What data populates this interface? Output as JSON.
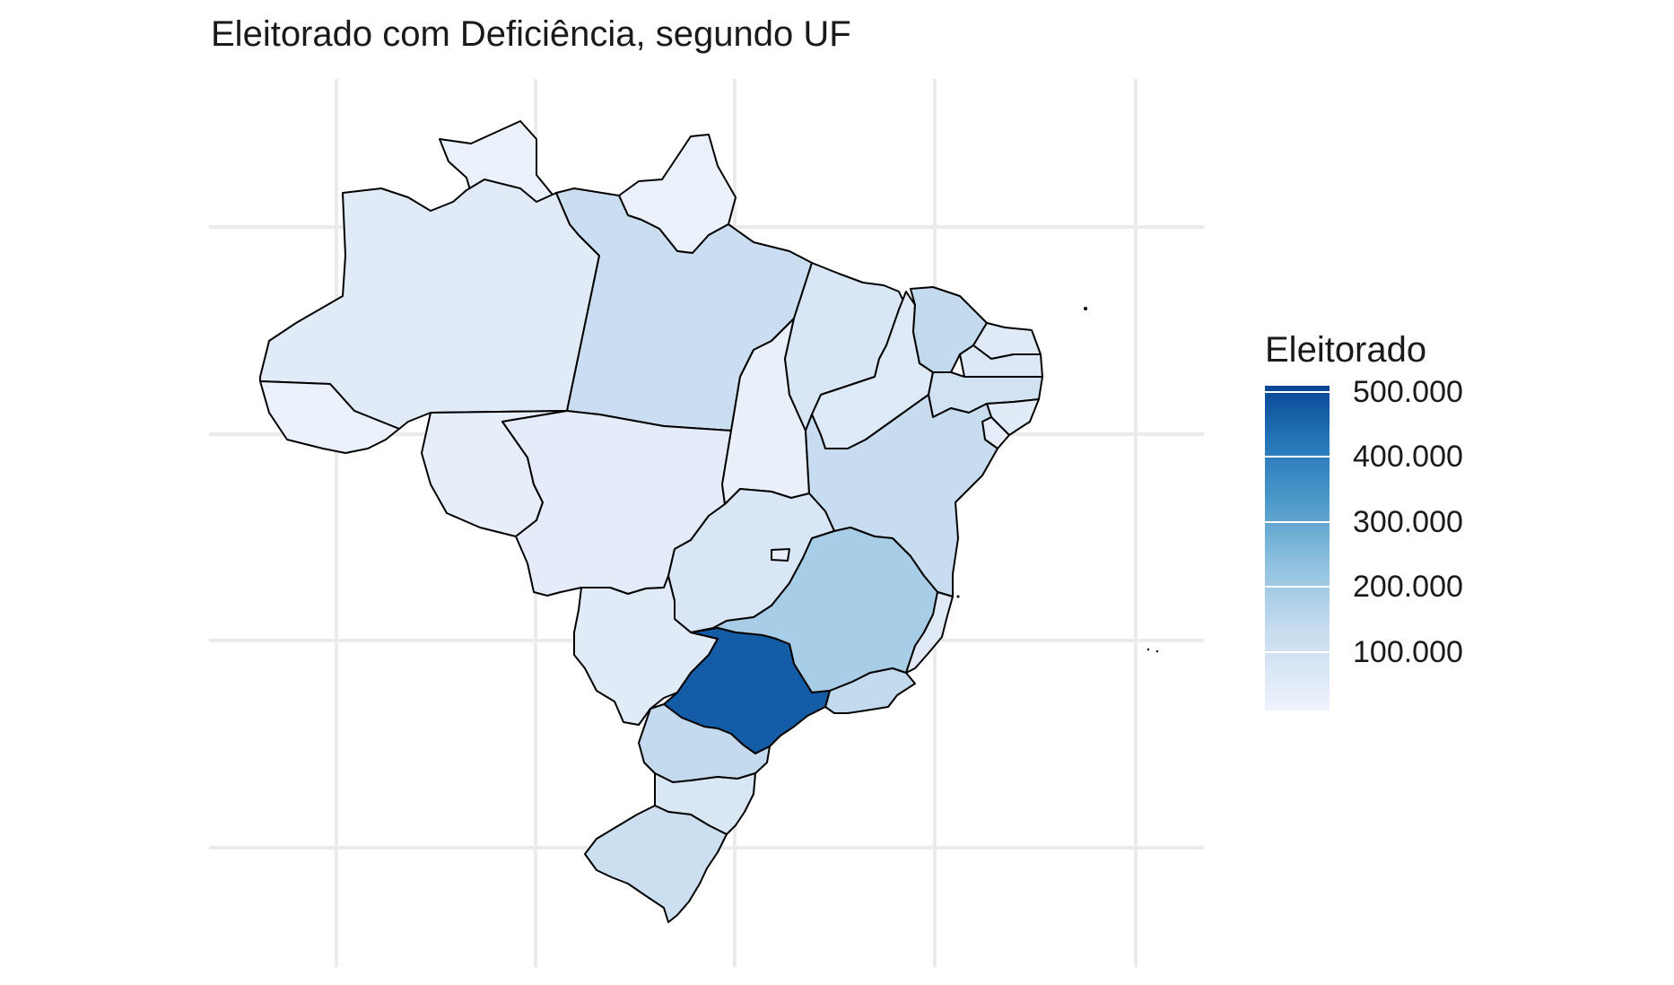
{
  "title": "Eleitorado com Deficiência, segundo UF",
  "legend": {
    "title": "Eleitorado",
    "ticks": [
      "500.000",
      "400.000",
      "300.000",
      "200.000",
      "100.000"
    ],
    "tick_values": [
      500000,
      400000,
      300000,
      200000,
      100000
    ],
    "range": [
      0,
      500000
    ],
    "color_low": "#eef3fc",
    "color_high": "#084594"
  },
  "chart_data": {
    "type": "choropleth",
    "region_level": "UF",
    "regions": [
      {
        "uf": "RR",
        "value": 8000
      },
      {
        "uf": "AP",
        "value": 9000
      },
      {
        "uf": "AM",
        "value": 40000
      },
      {
        "uf": "AC",
        "value": 8000
      },
      {
        "uf": "RO",
        "value": 25000
      },
      {
        "uf": "PA",
        "value": 110000
      },
      {
        "uf": "MT",
        "value": 35000
      },
      {
        "uf": "TO",
        "value": 15000
      },
      {
        "uf": "MA",
        "value": 70000
      },
      {
        "uf": "PI",
        "value": 50000
      },
      {
        "uf": "CE",
        "value": 130000
      },
      {
        "uf": "RN",
        "value": 45000
      },
      {
        "uf": "PB",
        "value": 55000
      },
      {
        "uf": "PE",
        "value": 90000
      },
      {
        "uf": "AL",
        "value": 40000
      },
      {
        "uf": "SE",
        "value": 30000
      },
      {
        "uf": "BA",
        "value": 120000
      },
      {
        "uf": "GO",
        "value": 70000
      },
      {
        "uf": "DF",
        "value": 15000
      },
      {
        "uf": "MS",
        "value": 40000
      },
      {
        "uf": "MG",
        "value": 180000
      },
      {
        "uf": "ES",
        "value": 45000
      },
      {
        "uf": "RJ",
        "value": 130000
      },
      {
        "uf": "SP",
        "value": 460000
      },
      {
        "uf": "PR",
        "value": 130000
      },
      {
        "uf": "SC",
        "value": 65000
      },
      {
        "uf": "RS",
        "value": 105000
      }
    ],
    "grid": true
  }
}
